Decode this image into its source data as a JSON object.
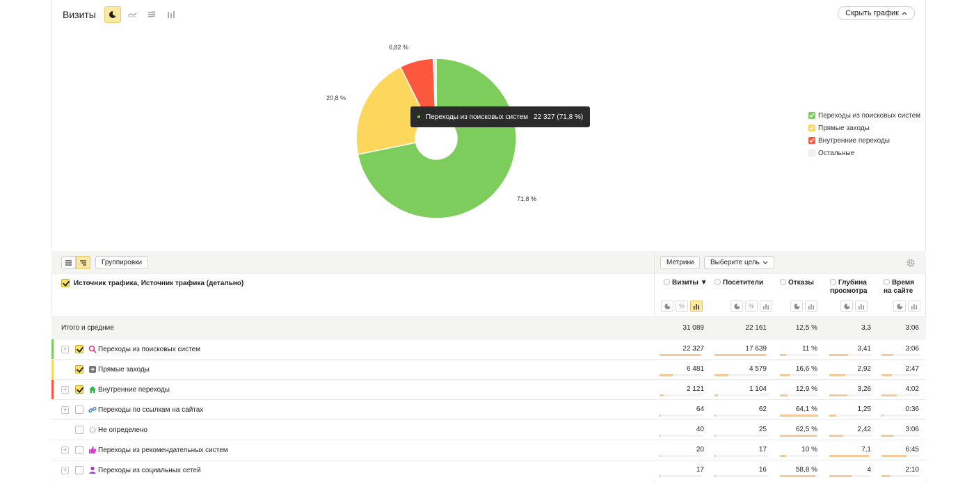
{
  "header": {
    "title": "Визиты",
    "hide_chart_label": "Скрыть график"
  },
  "chart_data": {
    "type": "pie",
    "title": "",
    "categories": [
      "Переходы из поисковых систем",
      "Прямые заходы",
      "Внутренние переходы",
      "Остальные"
    ],
    "values": [
      71.8,
      20.8,
      6.82,
      0.58
    ],
    "labels": [
      "71,8 %",
      "20,8 %",
      "6,82 %",
      ""
    ],
    "colors": [
      "#7ccd5b",
      "#fdd65c",
      "#fc583d",
      "#e6e6e6"
    ],
    "donut": true,
    "legend_position": "right",
    "tooltip": {
      "label": "Переходы из поисковых систем",
      "value": "22 327 (71,8 %)"
    }
  },
  "legend": [
    {
      "label": "Переходы из поисковых систем",
      "color": "#7ccd5b",
      "checked": true
    },
    {
      "label": "Прямые заходы",
      "color": "#fdd65c",
      "checked": true
    },
    {
      "label": "Внутренние переходы",
      "color": "#fc583d",
      "checked": true
    },
    {
      "label": "Остальные",
      "color": "#e6e6e6",
      "checked": false
    }
  ],
  "toolbar": {
    "groupings_label": "Группировки",
    "metrics_label": "Метрики",
    "goal_label": "Выберите цель"
  },
  "table": {
    "dimension_title": "Источник трафика, Источник трафика (детально)",
    "columns": [
      {
        "label": "Визиты",
        "sorted": "desc"
      },
      {
        "label": "Посетители"
      },
      {
        "label": "Отказы"
      },
      {
        "label": "Глубина просмотра"
      },
      {
        "label": "Время на сайте"
      }
    ],
    "col_line1": [
      "Визиты ▼",
      "Посетители",
      "Отказы",
      "Глубина",
      "Время"
    ],
    "col_line2": [
      "",
      "",
      "",
      "просмотра",
      "на сайте"
    ],
    "total": {
      "label": "Итого и средние",
      "values": [
        "31 089",
        "22 161",
        "12,5 %",
        "3,3",
        "3:06"
      ]
    },
    "rows": [
      {
        "label": "Переходы из поисковых систем",
        "values": [
          "22 327",
          "17 639",
          "11 %",
          "3,41",
          "3:06"
        ],
        "bars": [
          0.95,
          0.95,
          0.17,
          0.45,
          0.3
        ],
        "marker": "#7ccd5b",
        "checked": true,
        "expandable": true,
        "icon": "search-icon",
        "icon_color": "#e0306e"
      },
      {
        "label": "Прямые заходы",
        "values": [
          "6 481",
          "4 579",
          "16,6 %",
          "2,92",
          "2:47"
        ],
        "bars": [
          0.3,
          0.25,
          0.26,
          0.38,
          0.27
        ],
        "marker": "#fdd65c",
        "checked": true,
        "expandable": false,
        "icon": "direct-entry-icon",
        "icon_color": "#777777"
      },
      {
        "label": "Внутренние переходы",
        "values": [
          "2 121",
          "1 104",
          "12,9 %",
          "3,26",
          "4:02"
        ],
        "bars": [
          0.1,
          0.06,
          0.2,
          0.43,
          0.4
        ],
        "marker": "#fc583d",
        "checked": true,
        "expandable": true,
        "icon": "home-icon",
        "icon_color": "#2db84b"
      },
      {
        "label": "Переходы по ссылкам на сайтах",
        "values": [
          "64",
          "62",
          "64,1 %",
          "1,25",
          "0:36"
        ],
        "bars": [
          0.01,
          0.01,
          1.0,
          0.17,
          0.06
        ],
        "marker": "",
        "checked": false,
        "expandable": true,
        "icon": "link-icon",
        "icon_color": "#2d7dd2"
      },
      {
        "label": "Не определено",
        "values": [
          "40",
          "25",
          "62,5 %",
          "2,42",
          "3:06"
        ],
        "bars": [
          0.01,
          0.01,
          0.97,
          0.32,
          0.3
        ],
        "marker": "",
        "checked": false,
        "expandable": false,
        "icon": "spinner-icon",
        "icon_color": "#aaaaaa"
      },
      {
        "label": "Переходы из рекомендательных систем",
        "values": [
          "20",
          "17",
          "10 %",
          "7,1",
          "6:45"
        ],
        "bars": [
          0.01,
          0.01,
          0.16,
          0.95,
          0.66
        ],
        "marker": "",
        "checked": false,
        "expandable": true,
        "icon": "thumbs-up-icon",
        "icon_color": "#d63fd0"
      },
      {
        "label": "Переходы из социальных сетей",
        "values": [
          "17",
          "16",
          "58,8 %",
          "4",
          "2:10"
        ],
        "bars": [
          0.01,
          0.01,
          0.92,
          0.53,
          0.21
        ],
        "marker": "",
        "checked": false,
        "expandable": true,
        "icon": "person-icon",
        "icon_color": "#9b3fd0"
      }
    ]
  }
}
